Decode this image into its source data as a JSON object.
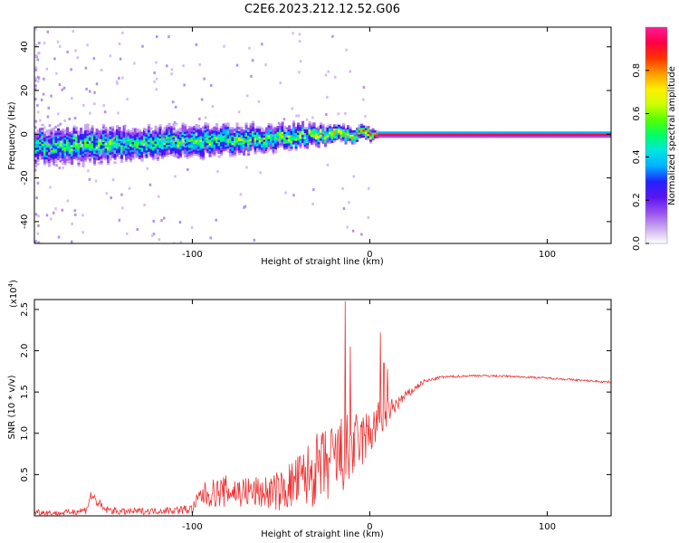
{
  "figure": {
    "title": "C2E6.2023.212.12.52.G06"
  },
  "chart_data": [
    {
      "type": "heatmap",
      "xlabel": "Height of straight line (km)",
      "ylabel": "Frequency (Hz)",
      "xlim": [
        -189,
        136
      ],
      "ylim": [
        -50,
        49
      ],
      "x_ticks": [
        -100,
        0,
        100
      ],
      "y_ticks": [
        -40,
        -20,
        0,
        20,
        40
      ],
      "colorbar": {
        "label": "Normalized spectral amplitude",
        "range": [
          0.0,
          1.0
        ],
        "ticks": [
          0.0,
          0.2,
          0.4,
          0.6,
          0.8
        ],
        "tick_labels": [
          "0.0",
          "0.2",
          "0.4",
          "0.6",
          "0.8"
        ],
        "colormap": [
          "#ffffff",
          "#c9a9ee",
          "#9a4ff0",
          "#5a14f0",
          "#2222ff",
          "#00b0ff",
          "#00e5e0",
          "#00ff66",
          "#55ff00",
          "#ccff00",
          "#ffee00",
          "#ff9900",
          "#ff3300",
          "#ff0044",
          "#ff1a99"
        ]
      },
      "ridge": {
        "x": [
          -189,
          -160,
          -130,
          -100,
          -70,
          -40,
          -20,
          0,
          4,
          136
        ],
        "center_hz": [
          -5,
          -5,
          -4,
          -3,
          -2,
          -1,
          0,
          0,
          0,
          0
        ],
        "peak_amplitude": [
          0.45,
          0.5,
          0.45,
          0.5,
          0.5,
          0.55,
          0.7,
          0.8,
          0.95,
          0.95
        ],
        "halfwidth_hz": [
          9,
          9,
          8,
          8,
          7,
          6,
          4,
          3,
          1.2,
          1.2
        ]
      }
    },
    {
      "type": "line",
      "xlabel": "Height of straight line (km)",
      "ylabel": "SNR (10 * v/v)",
      "y_scale_label": "(x10",
      "y_scale_exp": "4",
      "xlim": [
        -189,
        136
      ],
      "ylim": [
        0,
        2.62
      ],
      "x_ticks": [
        -100,
        0,
        100
      ],
      "y_ticks": [
        0.5,
        1.0,
        1.5,
        2.0,
        2.5
      ],
      "y_tick_labels": [
        "0.5",
        "1.0",
        "1.5",
        "2.0",
        "2.5"
      ],
      "color": "#ee3333",
      "series": [
        {
          "x": [
            -189,
            -175,
            -160,
            -157,
            -150,
            -140,
            -120,
            -100,
            -95,
            -80,
            -60,
            -50,
            -40,
            -30,
            -20,
            -15,
            -10,
            -5,
            0,
            5,
            8,
            10,
            15,
            20,
            30,
            40,
            60,
            80,
            100,
            120,
            136
          ],
          "values": [
            0.05,
            0.03,
            0.07,
            0.25,
            0.08,
            0.05,
            0.06,
            0.08,
            0.25,
            0.3,
            0.28,
            0.3,
            0.42,
            0.55,
            0.65,
            0.75,
            0.8,
            0.9,
            1.0,
            1.15,
            1.2,
            1.25,
            1.35,
            1.45,
            1.62,
            1.68,
            1.7,
            1.69,
            1.67,
            1.64,
            1.62
          ],
          "noise_amplitude": [
            0.04,
            0.03,
            0.05,
            0.08,
            0.05,
            0.04,
            0.04,
            0.06,
            0.15,
            0.2,
            0.2,
            0.25,
            0.35,
            0.45,
            0.5,
            0.5,
            0.45,
            0.35,
            0.3,
            0.25,
            0.2,
            0.15,
            0.1,
            0.06,
            0.03,
            0.015,
            0.012,
            0.012,
            0.012,
            0.012,
            0.012
          ]
        }
      ],
      "spikes": [
        {
          "x": -14,
          "value": 2.6
        },
        {
          "x": -11,
          "value": 2.05
        },
        {
          "x": 6,
          "value": 2.22
        },
        {
          "x": 8,
          "value": 1.85
        },
        {
          "x": 10,
          "value": 1.78
        }
      ]
    }
  ]
}
